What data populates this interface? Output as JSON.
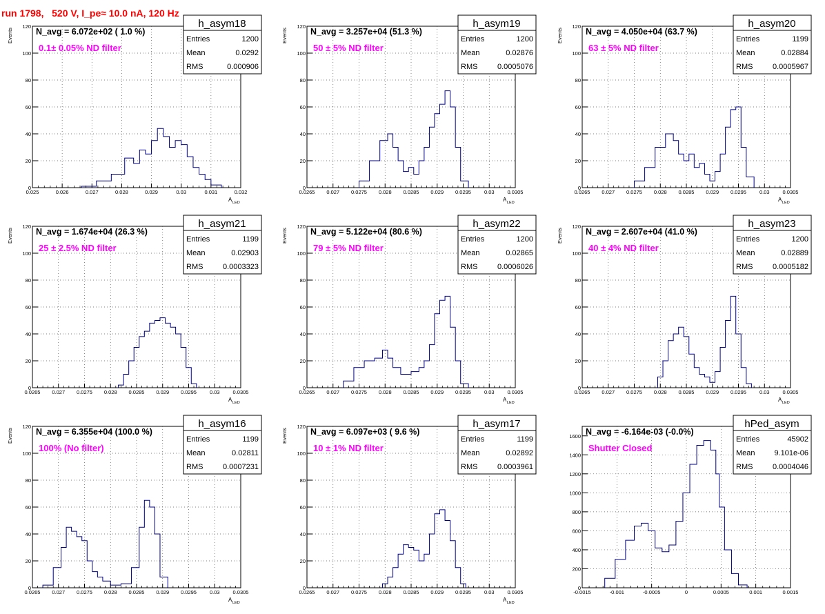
{
  "run_title": "run 1798,   520 V, I_pe≈ 10.0 nA, 120 Hz",
  "stat_labels": {
    "entries": "Entries",
    "mean": "Mean",
    "rms": "RMS"
  },
  "colors": {
    "histogram": "#000080",
    "annotation": "#ff00ff",
    "title": "#ff0000",
    "grid": "#555555"
  },
  "chart_data": [
    {
      "type": "histogram",
      "name": "h_asym18",
      "navg": "N_avg = 6.072e+02 ( 1.0 %)",
      "note": "0.1± 0.05% ND filter",
      "stats": {
        "entries": "1200",
        "mean": "0.0292",
        "rms": "0.000906"
      },
      "xlabel": "A",
      "xlabel_sub": "LED",
      "ylabel": "Events",
      "xlim": [
        0.025,
        0.032
      ],
      "ylim": [
        0,
        120
      ],
      "xticks": [
        "0.025",
        "0.026",
        "0.027",
        "0.028",
        "0.029",
        "0.03",
        "0.031",
        "0.032"
      ],
      "yticks": [
        "0",
        "20",
        "40",
        "60",
        "80",
        "100",
        "120"
      ],
      "grid": true,
      "x": [
        0.0269,
        0.0274,
        0.0279,
        0.0283,
        0.0285,
        0.0287,
        0.0289,
        0.0291,
        0.0293,
        0.0295,
        0.0297,
        0.0299,
        0.0301,
        0.0303,
        0.0305,
        0.0307,
        0.0309,
        0.0311
      ],
      "y": [
        1,
        5,
        10,
        22,
        18,
        28,
        25,
        35,
        44,
        38,
        30,
        35,
        32,
        23,
        15,
        10,
        6,
        2
      ]
    },
    {
      "type": "histogram",
      "name": "h_asym19",
      "navg": "N_avg = 3.257e+04 (51.3 %)",
      "note": "50 ± 5% ND filter",
      "stats": {
        "entries": "1200",
        "mean": "0.02876",
        "rms": "0.0005076"
      },
      "xlabel": "A",
      "xlabel_sub": "LED",
      "ylabel": "Events",
      "xlim": [
        0.0265,
        0.0305
      ],
      "ylim": [
        0,
        120
      ],
      "xticks": [
        "0.0265",
        "0.027",
        "0.0275",
        "0.028",
        "0.0285",
        "0.029",
        "0.0295",
        "0.03",
        "0.0305"
      ],
      "yticks": [
        "0",
        "20",
        "40",
        "60",
        "80",
        "100",
        "120"
      ],
      "grid": true,
      "x": [
        0.0276,
        0.0278,
        0.028,
        0.0281,
        0.0282,
        0.0283,
        0.0284,
        0.0285,
        0.0286,
        0.0287,
        0.0288,
        0.0289,
        0.029,
        0.0291,
        0.0292,
        0.0293,
        0.0294,
        0.0295
      ],
      "y": [
        5,
        20,
        35,
        40,
        30,
        20,
        12,
        15,
        10,
        20,
        30,
        45,
        55,
        62,
        72,
        60,
        30,
        5
      ]
    },
    {
      "type": "histogram",
      "name": "h_asym20",
      "navg": "N_avg = 4.050e+04 (63.7 %)",
      "note": "63 ± 5% ND filter",
      "stats": {
        "entries": "1199",
        "mean": "0.02884",
        "rms": "0.0005967"
      },
      "xlabel": "A",
      "xlabel_sub": "LED",
      "ylabel": "Events",
      "xlim": [
        0.0265,
        0.0305
      ],
      "ylim": [
        0,
        120
      ],
      "xticks": [
        "0.0265",
        "0.027",
        "0.0275",
        "0.028",
        "0.0285",
        "0.029",
        "0.0295",
        "0.03",
        "0.0305"
      ],
      "yticks": [
        "0",
        "20",
        "40",
        "60",
        "80",
        "100",
        "120"
      ],
      "grid": true,
      "x": [
        0.0276,
        0.0278,
        0.028,
        0.0282,
        0.0283,
        0.0284,
        0.0285,
        0.0286,
        0.0287,
        0.0288,
        0.0289,
        0.029,
        0.0291,
        0.0292,
        0.0293,
        0.0294,
        0.0295,
        0.0296,
        0.0297
      ],
      "y": [
        5,
        15,
        30,
        40,
        35,
        25,
        20,
        25,
        15,
        18,
        10,
        5,
        12,
        25,
        45,
        58,
        60,
        30,
        8
      ]
    },
    {
      "type": "histogram",
      "name": "h_asym21",
      "navg": "N_avg = 1.674e+04 (26.3 %)",
      "note": "25 ± 2.5% ND filter",
      "stats": {
        "entries": "1199",
        "mean": "0.02903",
        "rms": "0.0003323"
      },
      "xlabel": "A",
      "xlabel_sub": "LED",
      "ylabel": "Events",
      "xlim": [
        0.0265,
        0.0305
      ],
      "ylim": [
        0,
        120
      ],
      "xticks": [
        "0.0265",
        "0.027",
        "0.0275",
        "0.028",
        "0.0285",
        "0.029",
        "0.0295",
        "0.03",
        "0.0305"
      ],
      "yticks": [
        "0",
        "20",
        "40",
        "60",
        "80",
        "100",
        "120"
      ],
      "grid": true,
      "x": [
        0.0282,
        0.0283,
        0.0284,
        0.0285,
        0.0286,
        0.0287,
        0.0288,
        0.0289,
        0.029,
        0.0291,
        0.0292,
        0.0293,
        0.0294,
        0.0295,
        0.0296
      ],
      "y": [
        2,
        10,
        20,
        30,
        38,
        42,
        48,
        50,
        52,
        48,
        45,
        40,
        30,
        15,
        3
      ]
    },
    {
      "type": "histogram",
      "name": "h_asym22",
      "navg": "N_avg = 5.122e+04 (80.6 %)",
      "note": "79 ± 5% ND filter",
      "stats": {
        "entries": "1200",
        "mean": "0.02865",
        "rms": "0.0006026"
      },
      "xlabel": "A",
      "xlabel_sub": "LED",
      "ylabel": "Events",
      "xlim": [
        0.0265,
        0.0305
      ],
      "ylim": [
        0,
        120
      ],
      "xticks": [
        "0.0265",
        "0.027",
        "0.0275",
        "0.028",
        "0.0285",
        "0.029",
        "0.0295",
        "0.03",
        "0.0305"
      ],
      "yticks": [
        "0",
        "20",
        "40",
        "60",
        "80",
        "100",
        "120"
      ],
      "grid": true,
      "x": [
        0.0273,
        0.0275,
        0.0277,
        0.0279,
        0.028,
        0.0281,
        0.0282,
        0.0284,
        0.0286,
        0.0287,
        0.0288,
        0.0289,
        0.029,
        0.0291,
        0.0292,
        0.0293,
        0.0294,
        0.0295
      ],
      "y": [
        5,
        15,
        20,
        22,
        28,
        22,
        15,
        10,
        12,
        15,
        20,
        32,
        55,
        65,
        68,
        45,
        20,
        3
      ]
    },
    {
      "type": "histogram",
      "name": "h_asym23",
      "navg": "N_avg = 2.607e+04 (41.0 %)",
      "note": "40 ± 4% ND filter",
      "stats": {
        "entries": "1200",
        "mean": "0.02889",
        "rms": "0.0005182"
      },
      "xlabel": "A",
      "xlabel_sub": "LED",
      "ylabel": "Events",
      "xlim": [
        0.0265,
        0.0305
      ],
      "ylim": [
        0,
        120
      ],
      "xticks": [
        "0.0265",
        "0.027",
        "0.0275",
        "0.028",
        "0.0285",
        "0.029",
        "0.0295",
        "0.03",
        "0.0305"
      ],
      "yticks": [
        "0",
        "20",
        "40",
        "60",
        "80",
        "100",
        "120"
      ],
      "grid": true,
      "x": [
        0.028,
        0.0281,
        0.0282,
        0.0283,
        0.0284,
        0.0285,
        0.0286,
        0.0287,
        0.0288,
        0.0289,
        0.029,
        0.0291,
        0.0292,
        0.0293,
        0.0294,
        0.0295,
        0.0296,
        0.0297
      ],
      "y": [
        8,
        20,
        35,
        40,
        45,
        38,
        25,
        15,
        10,
        8,
        4,
        12,
        30,
        50,
        68,
        40,
        15,
        3
      ]
    },
    {
      "type": "histogram",
      "name": "h_asym16",
      "navg": "N_avg = 6.355e+04 (100.0 %)",
      "note": "100% (No filter)",
      "stats": {
        "entries": "1199",
        "mean": "0.02811",
        "rms": "0.0007231"
      },
      "xlabel": "A",
      "xlabel_sub": "LED",
      "ylabel": "Events",
      "xlim": [
        0.0265,
        0.0305
      ],
      "ylim": [
        0,
        120
      ],
      "xticks": [
        "0.0265",
        "0.027",
        "0.0275",
        "0.028",
        "0.0285",
        "0.029",
        "0.0295",
        "0.03",
        "0.0305"
      ],
      "yticks": [
        "0",
        "20",
        "40",
        "60",
        "80",
        "100",
        "120"
      ],
      "grid": true,
      "x": [
        0.0268,
        0.027,
        0.0271,
        0.0272,
        0.0273,
        0.0274,
        0.0275,
        0.0276,
        0.0277,
        0.0278,
        0.0279,
        0.0281,
        0.0283,
        0.0285,
        0.0286,
        0.0287,
        0.0288,
        0.0289,
        0.029
      ],
      "y": [
        2,
        15,
        30,
        45,
        42,
        38,
        35,
        20,
        12,
        8,
        5,
        2,
        3,
        15,
        45,
        65,
        60,
        40,
        8
      ]
    },
    {
      "type": "histogram",
      "name": "h_asym17",
      "navg": "N_avg = 6.097e+03 ( 9.6 %)",
      "note": "10 ± 1% ND filter",
      "stats": {
        "entries": "1199",
        "mean": "0.02892",
        "rms": "0.0003961"
      },
      "xlabel": "A",
      "xlabel_sub": "LED",
      "ylabel": "Events",
      "xlim": [
        0.0265,
        0.0305
      ],
      "ylim": [
        0,
        120
      ],
      "xticks": [
        "0.0265",
        "0.027",
        "0.0275",
        "0.028",
        "0.0285",
        "0.029",
        "0.0295",
        "0.03",
        "0.0305"
      ],
      "yticks": [
        "0",
        "20",
        "40",
        "60",
        "80",
        "100",
        "120"
      ],
      "grid": true,
      "x": [
        0.028,
        0.0281,
        0.0282,
        0.0283,
        0.0284,
        0.0285,
        0.0286,
        0.0287,
        0.0288,
        0.0289,
        0.029,
        0.0291,
        0.0292,
        0.0293,
        0.0294,
        0.0295
      ],
      "y": [
        3,
        8,
        15,
        25,
        32,
        30,
        28,
        20,
        25,
        40,
        55,
        58,
        50,
        35,
        15,
        3
      ]
    },
    {
      "type": "histogram",
      "name": "hPed_asym",
      "navg": "N_avg = -6.164e-03 (-0.0%)",
      "note": "Shutter Closed",
      "stats": {
        "entries": "45902",
        "mean": "9.101e-06",
        "rms": "0.0004046"
      },
      "xlabel": "",
      "xlabel_sub": "",
      "ylabel": "",
      "xlim": [
        -0.0015,
        0.0015
      ],
      "ylim": [
        0,
        1700
      ],
      "xticks": [
        "-0.0015",
        "-0.001",
        "-0.0005",
        "0",
        "0.0005",
        "0.001",
        "0.0015"
      ],
      "yticks": [
        "0",
        "200",
        "400",
        "600",
        "800",
        "1000",
        "1200",
        "1400",
        "1600"
      ],
      "grid": true,
      "x": [
        -0.0011,
        -0.00095,
        -0.0008,
        -0.0007,
        -0.0006,
        -0.0005,
        -0.0004,
        -0.0003,
        -0.0002,
        -0.0001,
        0.0,
        0.0001,
        0.0002,
        0.0003,
        0.0004,
        0.00045,
        0.0005,
        0.0006,
        0.0007,
        0.0008
      ],
      "y": [
        100,
        300,
        500,
        650,
        680,
        600,
        420,
        380,
        450,
        700,
        1000,
        1300,
        1500,
        1550,
        1450,
        1200,
        850,
        400,
        150,
        30
      ]
    }
  ]
}
